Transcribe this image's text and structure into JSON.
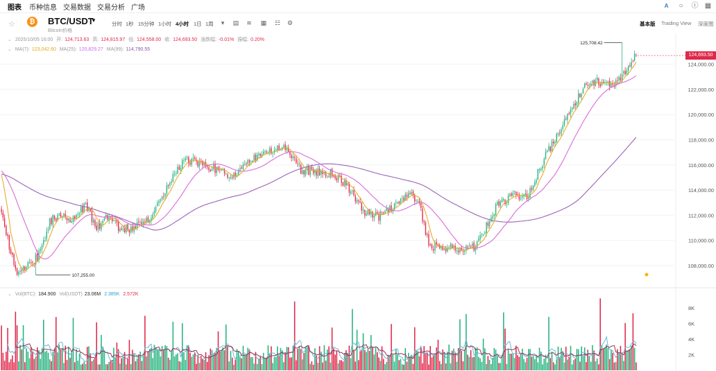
{
  "nav": {
    "tabs": [
      "图表",
      "币种信息",
      "交易数据",
      "交易分析",
      "广场"
    ],
    "active": 0
  },
  "symbol": {
    "name": "BTC/USDT",
    "sub": "Bitcoin价格"
  },
  "intervals": [
    "分时",
    "1秒",
    "15分钟",
    "1小时",
    "4小时",
    "1日",
    "1周"
  ],
  "active_interval": 4,
  "modes": [
    "基本版",
    "Trading View",
    "深度图"
  ],
  "active_mode": 0,
  "ohlc": {
    "date": "2025/10/05 16:00",
    "open_label": "开:",
    "open": "124,713.63",
    "high_label": "高:",
    "high": "124,815.97",
    "low_label": "低:",
    "low": "124,558.00",
    "close_label": "收:",
    "close": "124,693.50",
    "change_label": "涨跌幅:",
    "change": "-0.01%",
    "amp_label": "振幅:",
    "amp": "0.20%"
  },
  "ma": {
    "ma7_label": "MA(7):",
    "ma7": "123,042.60",
    "ma25_label": "MA(25):",
    "ma25": "120,829.27",
    "ma99_label": "MA(99):",
    "ma99": "114,790.55"
  },
  "vol": {
    "btc_label": "Vol(BTC):",
    "btc": "184.900",
    "usdt_label": "Vol(USDT)",
    "usdt": "23.06M",
    "ma1": "2.385K",
    "ma2": "2.572K"
  },
  "current_price": "124,693.50",
  "colors": {
    "up": "#26b47f",
    "down": "#e0294a",
    "ma7": "#e8a317",
    "ma25": "#d96bd5",
    "ma99": "#9a62b8",
    "vol_ma1": "#6bb6d8",
    "vol_ma2": "#9b3350"
  },
  "chart_data": {
    "type": "candlestick",
    "y_ticks": [
      "124,000.00",
      "122,000.00",
      "120,000.00",
      "118,000.00",
      "116,000.00",
      "114,000.00",
      "112,000.00",
      "110,000.00",
      "108,000.00"
    ],
    "y_tick_values": [
      124000,
      122000,
      120000,
      118000,
      116000,
      114000,
      112000,
      110000,
      108000
    ],
    "ylim": [
      106400,
      125800
    ],
    "vol_ticks": [
      "8K",
      "6K",
      "4K",
      "2K"
    ],
    "vol_tick_values": [
      8000,
      6000,
      4000,
      2000
    ],
    "vol_ylim": [
      0,
      9400
    ],
    "high_label": "125,708.42",
    "high_value": 125708.42,
    "low_label": "107,255.00",
    "low_value": 107255.0,
    "anchors": [
      [
        0,
        112200
      ],
      [
        6,
        109000
      ],
      [
        10,
        107500
      ],
      [
        20,
        108200
      ],
      [
        26,
        109300
      ],
      [
        31,
        111600
      ],
      [
        40,
        112000
      ],
      [
        46,
        111600
      ],
      [
        54,
        112800
      ],
      [
        61,
        111000
      ],
      [
        69,
        112000
      ],
      [
        76,
        110800
      ],
      [
        90,
        111200
      ],
      [
        99,
        112400
      ],
      [
        107,
        114500
      ],
      [
        118,
        116500
      ],
      [
        128,
        116000
      ],
      [
        140,
        115600
      ],
      [
        146,
        115000
      ],
      [
        158,
        116200
      ],
      [
        169,
        117200
      ],
      [
        183,
        117300
      ],
      [
        192,
        115600
      ],
      [
        210,
        115400
      ],
      [
        220,
        114600
      ],
      [
        233,
        112200
      ],
      [
        242,
        111900
      ],
      [
        253,
        112800
      ],
      [
        262,
        113800
      ],
      [
        268,
        113000
      ],
      [
        274,
        109600
      ],
      [
        284,
        109400
      ],
      [
        304,
        109400
      ],
      [
        318,
        112800
      ],
      [
        329,
        113600
      ],
      [
        337,
        113400
      ],
      [
        350,
        117000
      ],
      [
        362,
        119600
      ],
      [
        373,
        122200
      ],
      [
        382,
        122600
      ],
      [
        390,
        122300
      ],
      [
        396,
        122800
      ],
      [
        407,
        124690
      ]
    ],
    "n_candles": 408
  }
}
